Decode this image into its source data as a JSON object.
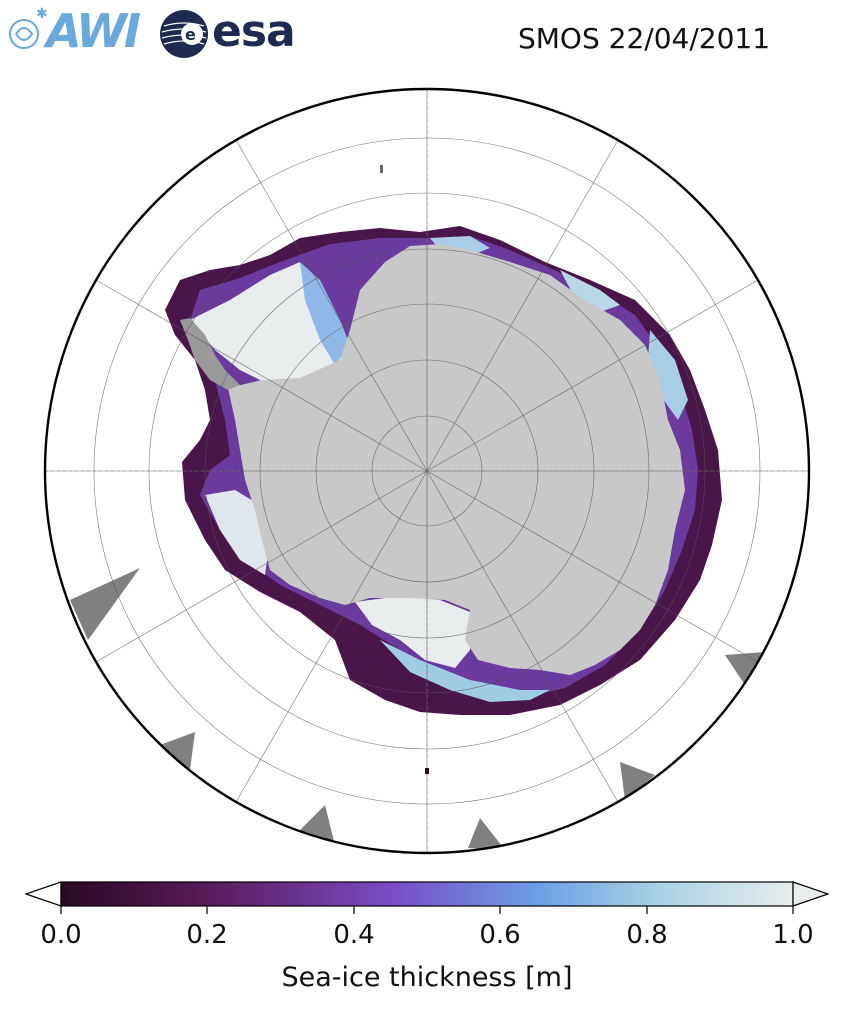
{
  "header": {
    "title": "SMOS 22/04/2011",
    "logos": [
      "AWI",
      "esa"
    ]
  },
  "colors": {
    "land": "#c8c8c8",
    "ocean": "#ffffff",
    "no_data": "#808080",
    "cmap": [
      "#2a0a22",
      "#5a1a5a",
      "#7a4cc4",
      "#6c9ee6",
      "#a9d3e4",
      "#e8ecec"
    ]
  },
  "colorbar": {
    "label": "Sea-ice thickness [m]",
    "ticks": [
      "0.0",
      "0.2",
      "0.4",
      "0.6",
      "0.8",
      "1.0"
    ],
    "range": [
      0.0,
      1.0
    ],
    "extend": "both"
  }
}
